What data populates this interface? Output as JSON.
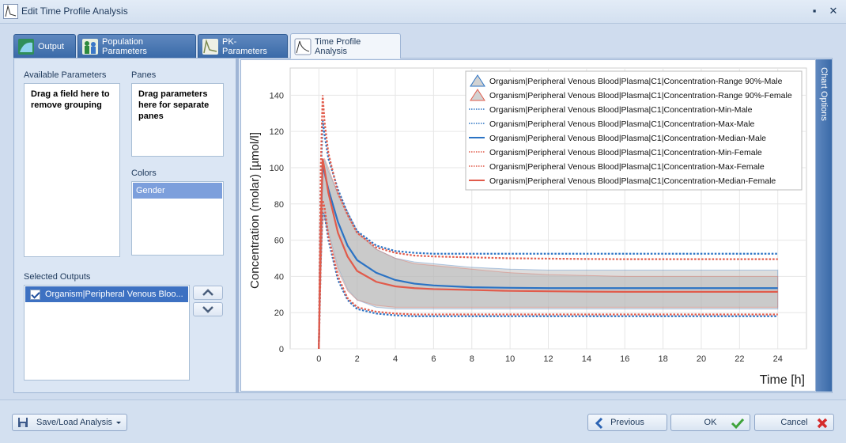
{
  "window": {
    "title": "Edit Time Profile Analysis",
    "pin_glyph": "▪",
    "close_glyph": "✕"
  },
  "tabs": [
    {
      "label": "Output",
      "icon": "output-chart-icon"
    },
    {
      "label": "Population Parameters",
      "icon": "population-icon"
    },
    {
      "label": "PK-Parameters",
      "icon": "pk-parameters-icon"
    },
    {
      "label": "Time Profile Analysis",
      "icon": "time-profile-icon"
    }
  ],
  "left_panel": {
    "available_parameters_label": "Available Parameters",
    "available_parameters_hint": "Drag a field here to remove grouping",
    "panes_label": "Panes",
    "panes_hint": "Drag parameters here for separate panes",
    "colors_label": "Colors",
    "colors_items": [
      "Gender"
    ],
    "selected_outputs_label": "Selected Outputs",
    "selected_outputs": [
      "Organism|Peripheral Venous Bloo..."
    ]
  },
  "chart_options_label": "Chart Options",
  "chart_data": {
    "type": "line",
    "xlabel": "Time [h]",
    "ylabel": "Concentration (molar) [µmol/l]",
    "xlim": [
      -1.5,
      25.5
    ],
    "ylim": [
      0,
      155
    ],
    "xticks": [
      0,
      2,
      4,
      6,
      8,
      10,
      12,
      14,
      16,
      18,
      20,
      22,
      24
    ],
    "yticks": [
      0,
      20,
      40,
      60,
      80,
      100,
      120,
      140
    ],
    "grid": true,
    "legend_position": "top-right",
    "colors": {
      "male": "#2b73c4",
      "female": "#e15b4b",
      "range": "#b4b4b4"
    },
    "x": [
      0,
      0.1,
      0.2,
      0.3,
      0.5,
      1,
      1.5,
      2,
      3,
      4,
      5,
      6,
      8,
      10,
      12,
      14,
      16,
      18,
      20,
      22,
      24
    ],
    "series": [
      {
        "name": "Organism|Peripheral Venous Blood|Plasma|C1|Concentration-Range 90%-Male",
        "kind": "range",
        "gender": "male",
        "lower": [
          0,
          40,
          73,
          74,
          65,
          45,
          33,
          27,
          23,
          22,
          22,
          22,
          22,
          22,
          22,
          22,
          22,
          22,
          22,
          22,
          22
        ],
        "upper": [
          0,
          70,
          102,
          104,
          98,
          86,
          76,
          65,
          55,
          50,
          48,
          47,
          45,
          44,
          43.5,
          43.5,
          43.5,
          43.5,
          43.5,
          43.5,
          43.5
        ]
      },
      {
        "name": "Organism|Peripheral Venous Blood|Plasma|C1|Concentration-Range 90%-Female",
        "kind": "range",
        "gender": "female",
        "lower": [
          0,
          38,
          70,
          72,
          63,
          43,
          32,
          27,
          24,
          23,
          23,
          23,
          23,
          23,
          23,
          23,
          23,
          23,
          23,
          23,
          23
        ],
        "upper": [
          0,
          72,
          104,
          105,
          100,
          85,
          74,
          64,
          55,
          50,
          47,
          46,
          44,
          42,
          41,
          40.5,
          40,
          40,
          40,
          40,
          40
        ]
      },
      {
        "name": "Organism|Peripheral Venous Blood|Plasma|C1|Concentration-Min-Male",
        "kind": "dotted",
        "gender": "male",
        "values": [
          0,
          50,
          75,
          74,
          60,
          38,
          27,
          22,
          19.5,
          18.5,
          18,
          18,
          18,
          18,
          18,
          18,
          18,
          18,
          18,
          18,
          18
        ]
      },
      {
        "name": "Organism|Peripheral Venous Blood|Plasma|C1|Concentration-Max-Male",
        "kind": "dotted",
        "gender": "male",
        "values": [
          0,
          95,
          126,
          118,
          105,
          88,
          75,
          65,
          57,
          54,
          53,
          52.5,
          52.5,
          52.5,
          52.5,
          52.5,
          52.5,
          52.5,
          52.5,
          52.5,
          52.5
        ]
      },
      {
        "name": "Organism|Peripheral Venous Blood|Plasma|C1|Concentration-Median-Male",
        "kind": "solid",
        "gender": "male",
        "values": [
          0,
          65,
          103,
          97,
          88,
          70,
          57,
          49,
          42,
          38,
          36,
          35,
          34,
          33.7,
          33.5,
          33.5,
          33.5,
          33.5,
          33.5,
          33.5,
          33.5
        ]
      },
      {
        "name": "Organism|Peripheral Venous Blood|Plasma|C1|Concentration-Min-Female",
        "kind": "dotted",
        "gender": "female",
        "values": [
          0,
          48,
          82,
          78,
          62,
          40,
          28,
          23,
          20.5,
          19.5,
          19,
          19,
          19,
          19,
          19,
          19,
          19,
          19,
          19,
          19,
          19
        ]
      },
      {
        "name": "Organism|Peripheral Venous Blood|Plasma|C1|Concentration-Max-Female",
        "kind": "dotted",
        "gender": "female",
        "values": [
          0,
          100,
          140,
          125,
          108,
          86,
          74,
          64,
          56,
          53,
          51.5,
          51,
          50.5,
          50,
          49.8,
          49.6,
          49.5,
          49.5,
          49.5,
          49.5,
          49.5
        ]
      },
      {
        "name": "Organism|Peripheral Venous Blood|Plasma|C1|Concentration-Median-Female",
        "kind": "solid",
        "gender": "female",
        "values": [
          0,
          68,
          105,
          99,
          86,
          64,
          51,
          43,
          37,
          34.5,
          33.5,
          33,
          32.5,
          32,
          31.8,
          31.6,
          31.5,
          31.5,
          31.5,
          31.5,
          31.5
        ]
      }
    ]
  },
  "bottom": {
    "save_load_label": "Save/Load Analysis",
    "previous_label": "Previous",
    "ok_label": "OK",
    "cancel_label": "Cancel"
  }
}
